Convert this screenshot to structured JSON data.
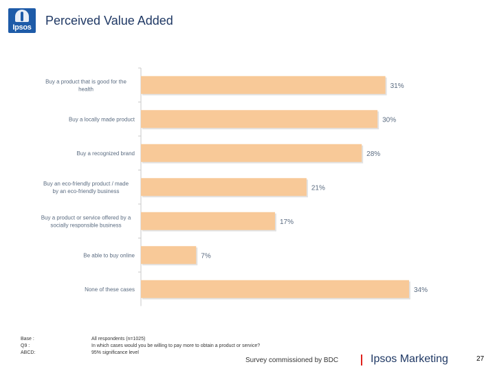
{
  "header": {
    "logo_text": "Ipsos",
    "title": "Perceived Value Added"
  },
  "colors": {
    "bar_fill": "#f8c998",
    "axis": "#c9c9c9",
    "label_text": "#5a6b80",
    "value_text": "#5a6b80"
  },
  "chart_data": {
    "type": "bar",
    "orientation": "horizontal",
    "title": "Perceived Value Added",
    "xlabel": "",
    "ylabel": "",
    "xlim": [
      0,
      34
    ],
    "categories": [
      "Buy a product that is good for the health",
      "Buy a locally made product",
      "Buy a recognized brand",
      "Buy an eco-friendly product / made by an eco-friendly business",
      "Buy a product or service offered by a socially responsible business",
      "Be able to buy online",
      "None of these cases"
    ],
    "category_lines": [
      [
        "Buy a product that is good for the",
        "health"
      ],
      [
        "Buy a locally made product"
      ],
      [
        "Buy a recognized brand"
      ],
      [
        "Buy an eco-friendly product / made",
        "by an eco-friendly business"
      ],
      [
        "Buy a product or service offered by a",
        "socially responsible business"
      ],
      [
        "Be able to buy online"
      ],
      [
        "None of these cases"
      ]
    ],
    "values": [
      31,
      30,
      28,
      21,
      17,
      7,
      34
    ],
    "value_labels": [
      "31%",
      "30%",
      "28%",
      "21%",
      "17%",
      "7%",
      "34%"
    ]
  },
  "footer": {
    "base_label": "Base :",
    "base_value": "All respondents (n=1025)",
    "q_label": "Q9 :",
    "q_value": "In which cases would you be willing to pay more to obtain a product or service?",
    "abcd_label": "ABCD:",
    "abcd_value": "95% significance level",
    "survey_text": "Survey commissioned by BDC",
    "brand": "Ipsos Marketing",
    "page_number": "27"
  }
}
